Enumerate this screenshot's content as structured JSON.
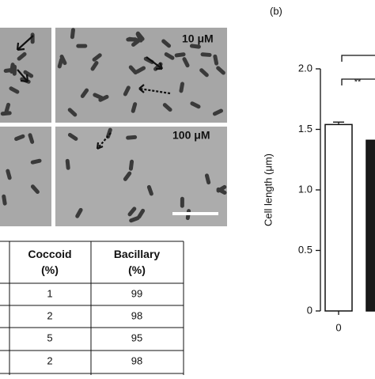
{
  "panel_label": "(b)",
  "micrographs": [
    {
      "label": "10 μM"
    },
    {
      "label": "100 μM"
    }
  ],
  "table": {
    "headers": [
      "Coccoid\n(%)",
      "Bacillary\n(%)"
    ],
    "rows": [
      [
        1,
        99
      ],
      [
        2,
        98
      ],
      [
        5,
        95
      ],
      [
        2,
        98
      ]
    ]
  },
  "chart_data": {
    "type": "bar",
    "y_label": "Cell length (μm)",
    "categories": [
      "0",
      null
    ],
    "values": [
      1.54,
      1.41
    ],
    "errors": [
      0.02,
      null
    ],
    "colors": [
      "#ffffff",
      "#1a1a1a"
    ],
    "ylim": [
      0,
      2.0
    ],
    "yticks": [
      0,
      0.5,
      {
        "value": 1.0,
        "label": "1.0"
      },
      1.5,
      {
        "value": 2.0,
        "label": "2.0"
      }
    ],
    "annotation": "**"
  }
}
